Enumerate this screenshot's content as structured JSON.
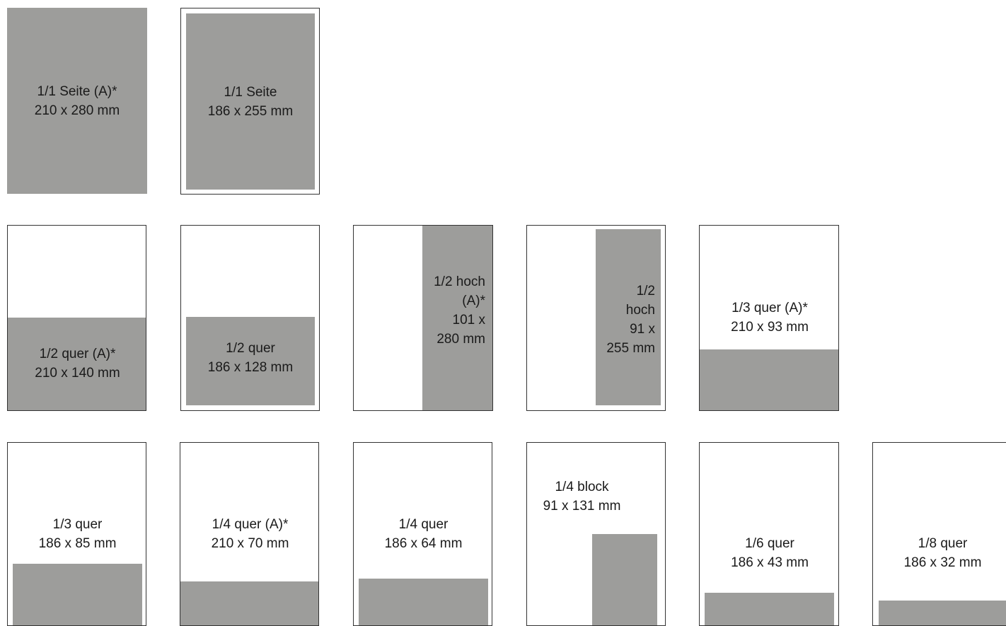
{
  "formats": [
    {
      "id": "full-a",
      "label": "1/1 Seite (A)*\n210 x 280 mm"
    },
    {
      "id": "full",
      "label": "1/1 Seite\n186 x 255 mm"
    },
    {
      "id": "half-q-a",
      "label": "1/2 quer (A)*\n210 x 140 mm"
    },
    {
      "id": "half-q",
      "label": "1/2 quer\n186 x 128 mm"
    },
    {
      "id": "half-h-a",
      "label": "1/2 hoch\n(A)*\n101 x\n280 mm"
    },
    {
      "id": "half-h",
      "label": "1/2\nhoch\n91 x\n255 mm"
    },
    {
      "id": "third-q-a",
      "label": "1/3 quer (A)*\n210 x 93 mm"
    },
    {
      "id": "third-q",
      "label": "1/3 quer\n186 x 85 mm"
    },
    {
      "id": "quarter-q-a",
      "label": "1/4 quer (A)*\n210 x 70 mm"
    },
    {
      "id": "quarter-q",
      "label": "1/4 quer\n186 x 64 mm"
    },
    {
      "id": "quarter-b",
      "label": "1/4 block\n91 x 131 mm"
    },
    {
      "id": "sixth-q",
      "label": "1/6 quer\n186 x 43 mm"
    },
    {
      "id": "eighth-q",
      "label": "1/8 quer\n186 x 32 mm"
    }
  ]
}
